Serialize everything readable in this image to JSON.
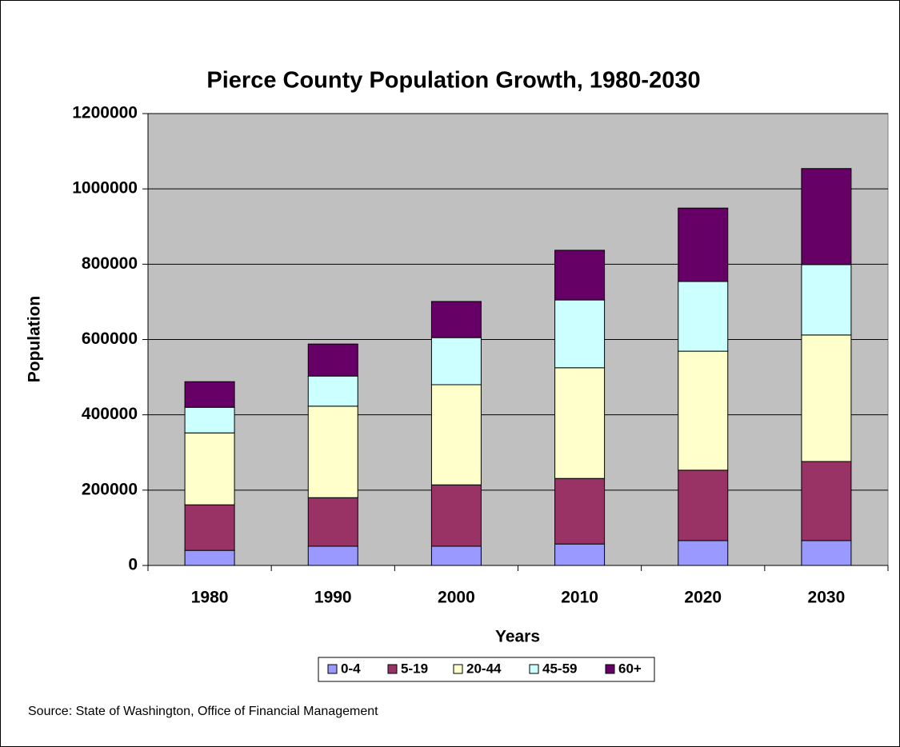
{
  "chart_data": {
    "type": "stacked_bar",
    "title": "Pierce County Population Growth, 1980-2030",
    "x_label": "Years",
    "y_label": "Population",
    "source": "Source: State of Washington, Office of Financial Management",
    "categories": [
      "1980",
      "1990",
      "2000",
      "2010",
      "2020",
      "2030"
    ],
    "series": [
      {
        "name": "0-4",
        "color": "#9999ff",
        "values": [
          40000,
          51000,
          51000,
          57000,
          66000,
          66000
        ]
      },
      {
        "name": "5-19",
        "color": "#993366",
        "values": [
          121000,
          129000,
          163000,
          174000,
          187000,
          210000
        ]
      },
      {
        "name": "20-44",
        "color": "#ffffcc",
        "values": [
          191000,
          243000,
          266000,
          294000,
          316000,
          336000
        ]
      },
      {
        "name": "45-59",
        "color": "#ccffff",
        "values": [
          68000,
          80000,
          125000,
          180000,
          185000,
          187000
        ]
      },
      {
        "name": "60+",
        "color": "#660066",
        "values": [
          68000,
          85000,
          96000,
          132000,
          195000,
          255000
        ]
      }
    ],
    "ylim": [
      0,
      1200000
    ],
    "yticks": [
      0,
      200000,
      400000,
      600000,
      800000,
      1000000,
      1200000
    ],
    "grid": true,
    "legend": "bottom",
    "plot_background": "#c0c0c0"
  }
}
